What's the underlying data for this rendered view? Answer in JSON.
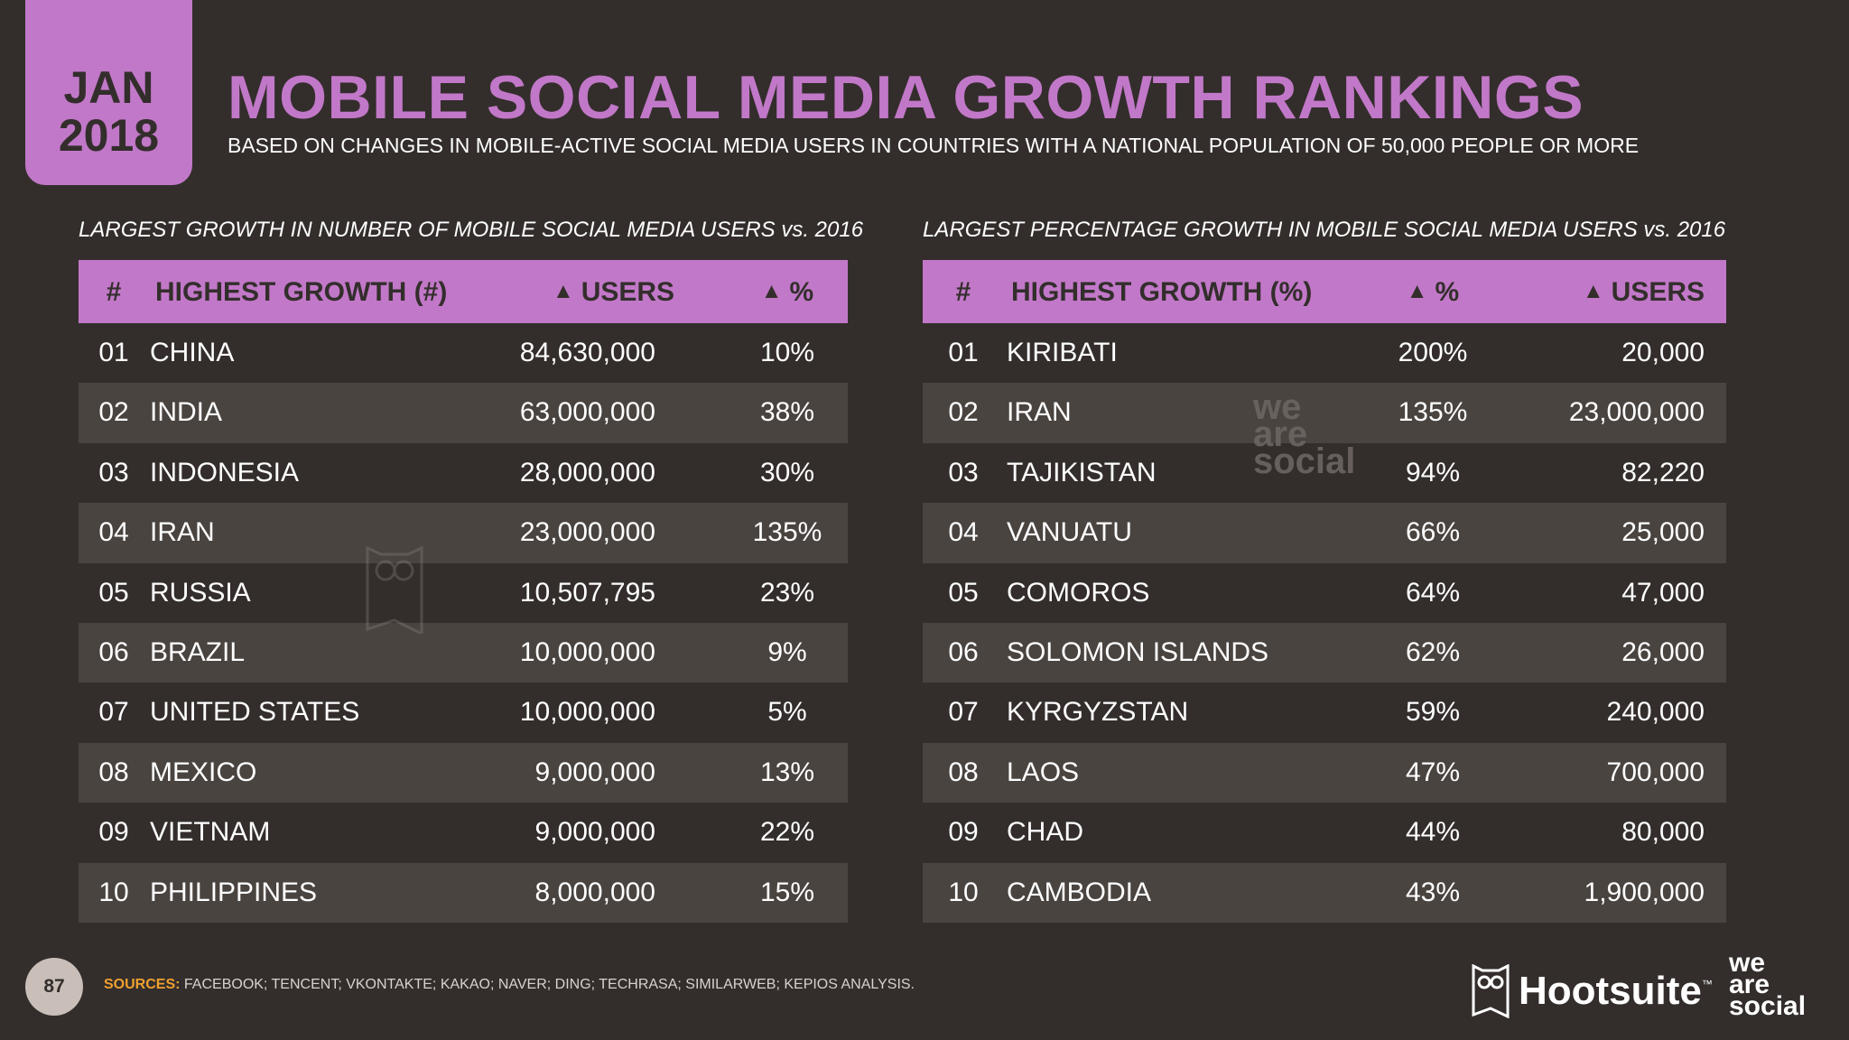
{
  "date": {
    "month": "JAN",
    "year": "2018"
  },
  "title": "MOBILE SOCIAL MEDIA GROWTH RANKINGS",
  "subtitle": "BASED ON CHANGES IN MOBILE-ACTIVE SOCIAL MEDIA USERS IN COUNTRIES WITH A NATIONAL POPULATION OF 50,000 PEOPLE OR MORE",
  "left": {
    "label": "LARGEST GROWTH IN NUMBER OF MOBILE SOCIAL MEDIA USERS vs. 2016",
    "headers": {
      "rank": "#",
      "name": "HIGHEST GROWTH (#)",
      "users": "USERS",
      "pct": "%"
    },
    "rows": [
      {
        "rank": "01",
        "name": "CHINA",
        "users": "84,630,000",
        "pct": "10%"
      },
      {
        "rank": "02",
        "name": "INDIA",
        "users": "63,000,000",
        "pct": "38%"
      },
      {
        "rank": "03",
        "name": "INDONESIA",
        "users": "28,000,000",
        "pct": "30%"
      },
      {
        "rank": "04",
        "name": "IRAN",
        "users": "23,000,000",
        "pct": "135%"
      },
      {
        "rank": "05",
        "name": "RUSSIA",
        "users": "10,507,795",
        "pct": "23%"
      },
      {
        "rank": "06",
        "name": "BRAZIL",
        "users": "10,000,000",
        "pct": "9%"
      },
      {
        "rank": "07",
        "name": "UNITED STATES",
        "users": "10,000,000",
        "pct": "5%"
      },
      {
        "rank": "08",
        "name": "MEXICO",
        "users": "9,000,000",
        "pct": "13%"
      },
      {
        "rank": "09",
        "name": "VIETNAM",
        "users": "9,000,000",
        "pct": "22%"
      },
      {
        "rank": "10",
        "name": "PHILIPPINES",
        "users": "8,000,000",
        "pct": "15%"
      }
    ]
  },
  "right": {
    "label": "LARGEST PERCENTAGE GROWTH IN MOBILE SOCIAL MEDIA USERS vs. 2016",
    "headers": {
      "rank": "#",
      "name": "HIGHEST GROWTH (%)",
      "pct": "%",
      "users": "USERS"
    },
    "rows": [
      {
        "rank": "01",
        "name": "KIRIBATI",
        "pct": "200%",
        "users": "20,000"
      },
      {
        "rank": "02",
        "name": "IRAN",
        "pct": "135%",
        "users": "23,000,000"
      },
      {
        "rank": "03",
        "name": "TAJIKISTAN",
        "pct": "94%",
        "users": "82,220"
      },
      {
        "rank": "04",
        "name": "VANUATU",
        "pct": "66%",
        "users": "25,000"
      },
      {
        "rank": "05",
        "name": "COMOROS",
        "pct": "64%",
        "users": "47,000"
      },
      {
        "rank": "06",
        "name": "SOLOMON ISLANDS",
        "pct": "62%",
        "users": "26,000"
      },
      {
        "rank": "07",
        "name": "KYRGYZSTAN",
        "pct": "59%",
        "users": "240,000"
      },
      {
        "rank": "08",
        "name": "LAOS",
        "pct": "47%",
        "users": "700,000"
      },
      {
        "rank": "09",
        "name": "CHAD",
        "pct": "44%",
        "users": "80,000"
      },
      {
        "rank": "10",
        "name": "CAMBODIA",
        "pct": "43%",
        "users": "1,900,000"
      }
    ]
  },
  "footer": {
    "page": "87",
    "sources_label": "SOURCES:",
    "sources_text": "FACEBOOK; TENCENT; VKONTAKTE; KAKAO; NAVER; DING; TECHRASA; SIMILARWEB; KEPIOS ANALYSIS."
  },
  "logos": {
    "hootsuite": "Hootsuite",
    "tm": "™",
    "was_line1": "we",
    "was_line2": "are",
    "was_line3": "social"
  },
  "icons": {
    "up": "up-triangle-icon",
    "owl": "hootsuite-owl-icon"
  },
  "colors": {
    "background": "#332e2c",
    "accent": "#c278c8",
    "row_alt": "#4a4441",
    "sources_label": "#f0a030"
  }
}
